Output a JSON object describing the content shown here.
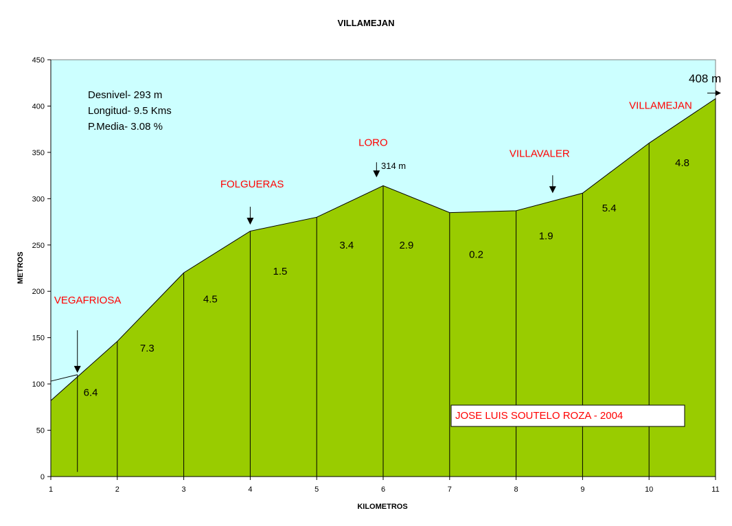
{
  "chart_data": {
    "type": "area",
    "title": "VILLAMEJAN",
    "xlabel": "KILOMETROS",
    "ylabel": "METROS",
    "xlim": [
      1,
      11
    ],
    "ylim": [
      0,
      450
    ],
    "y_ticks": [
      "0",
      "50",
      "100",
      "150",
      "200",
      "250",
      "300",
      "350",
      "400",
      "450"
    ],
    "x_ticks": [
      "1",
      "2",
      "3",
      "4",
      "5",
      "6",
      "7",
      "8",
      "9",
      "10",
      "11"
    ],
    "background_color": "#ccffff",
    "fill_color": "#99cc00",
    "x": [
      1,
      2,
      3,
      4,
      5,
      6,
      7,
      8,
      9,
      10,
      11
    ],
    "y": [
      82,
      146,
      220,
      265,
      280,
      314,
      285,
      287,
      306,
      360,
      408
    ],
    "segment_gradients": [
      {
        "x": 1.6,
        "y": 87,
        "label": "6.4",
        "color": "#000000"
      },
      {
        "x": 2.45,
        "y": 135,
        "label": "7.3",
        "color": "#000000"
      },
      {
        "x": 3.4,
        "y": 188,
        "label": "4.5",
        "color": "#000000"
      },
      {
        "x": 4.45,
        "y": 218,
        "label": "1.5",
        "color": "#000000"
      },
      {
        "x": 5.45,
        "y": 246,
        "label": "3.4",
        "color": "#000000"
      },
      {
        "x": 6.35,
        "y": 246,
        "label": "2.9",
        "color": "#0000ff"
      },
      {
        "x": 7.4,
        "y": 236,
        "label": "0.2",
        "color": "#000000"
      },
      {
        "x": 8.45,
        "y": 256,
        "label": "1.9",
        "color": "#000000"
      },
      {
        "x": 9.4,
        "y": 286,
        "label": "5.4",
        "color": "#000000"
      },
      {
        "x": 10.5,
        "y": 335,
        "label": "4.8",
        "color": "#000000"
      }
    ],
    "places": [
      {
        "label": "VEGAFRIOSA",
        "x": 1.4,
        "y": 112,
        "text_x": 1.05,
        "text_y": 187
      },
      {
        "label": "FOLGUERAS",
        "x": 4.0,
        "y": 272,
        "text_x": 3.55,
        "text_y": 312
      },
      {
        "label": "LORO",
        "x": 5.9,
        "y": 323,
        "text_x": 5.63,
        "text_y": 357
      },
      {
        "label": "VILLAVALER",
        "x": 8.55,
        "y": 306,
        "text_x": 7.9,
        "text_y": 345
      },
      {
        "label": "VILLAMEJAN",
        "x": 11.0,
        "y": 414,
        "text_x": 9.7,
        "text_y": 397
      }
    ],
    "annotations": {
      "info": [
        "Desnivel- 293 m",
        "Longitud- 9.5 Kms",
        "P.Media- 3.08 %"
      ],
      "peak_label": "314 m",
      "end_label": "408 m",
      "author": "JOSE LUIS SOUTELO ROZA - 2004"
    },
    "start_marker_x": 1.4
  }
}
